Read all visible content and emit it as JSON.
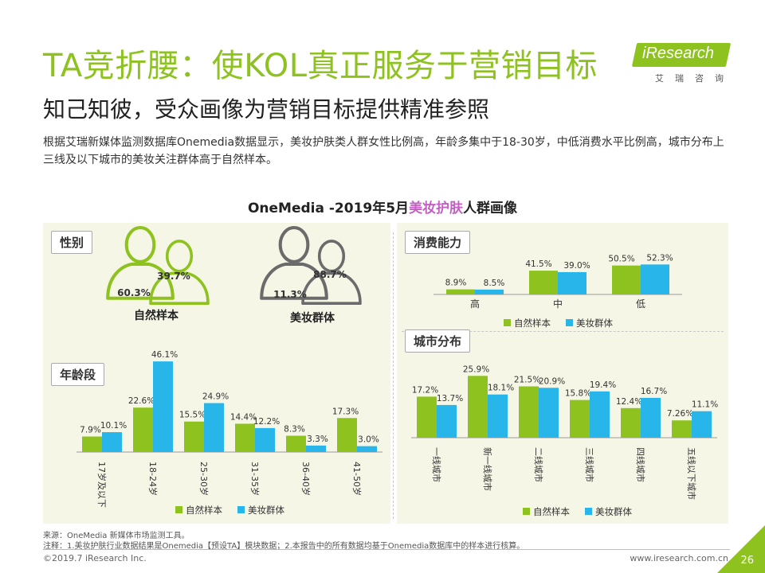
{
  "header": {
    "title": "TA竞折腰：使KOL真正服务于营销目标",
    "subtitle": "知己知彼，受众画像为营销目标提供精准参照",
    "description": "根据艾瑞新媒体监测数据库Onemedia数据显示，美妆护肤类人群女性比例高，年龄多集中于18-30岁，中低消费水平比例高，城市分布上三线及以下城市的美妆关注群体高于自然样本。"
  },
  "logo": {
    "text": "iResearch",
    "sub": "艾瑞咨询"
  },
  "colors": {
    "green": "#8dc21f",
    "blue": "#27b5ea",
    "highlight": "#c45fc4",
    "grayIcon": "#6b6b6b"
  },
  "chart_title": {
    "prefix": "OneMedia -2019年5月",
    "highlight": "美妆护肤",
    "suffix": "人群画像"
  },
  "sections": {
    "gender": "性别",
    "age": "年龄段",
    "spending": "消费能力",
    "city": "城市分布"
  },
  "chart_data": [
    {
      "type": "pictogram",
      "title": "性别",
      "groups": [
        {
          "name": "自然样本",
          "male": "60.3%",
          "female": "39.7%",
          "color": "green"
        },
        {
          "name": "美妆群体",
          "male": "11.3%",
          "female": "88.7%",
          "color": "gray"
        }
      ]
    },
    {
      "type": "bar",
      "title": "年龄段",
      "categories": [
        "17岁及以下",
        "18-24岁",
        "25-30岁",
        "31-35岁",
        "36-40岁",
        "41-50岁"
      ],
      "series": [
        {
          "name": "自然样本",
          "values": [
            7.9,
            22.6,
            15.5,
            14.4,
            8.3,
            17.3
          ],
          "labels": [
            "7.9%",
            "22.6%",
            "15.5%",
            "14.4%",
            "8.3%",
            "17.3%"
          ]
        },
        {
          "name": "美妆群体",
          "values": [
            10.1,
            46.1,
            24.9,
            12.2,
            3.3,
            3.0
          ],
          "labels": [
            "10.1%",
            "46.1%",
            "24.9%",
            "12.2%",
            "3.3%",
            "3.0%"
          ]
        }
      ]
    },
    {
      "type": "bar",
      "title": "消费能力",
      "categories": [
        "高",
        "中",
        "低"
      ],
      "series": [
        {
          "name": "自然样本",
          "values": [
            8.9,
            41.5,
            50.5
          ],
          "labels": [
            "8.9%",
            "41.5%",
            "50.5%"
          ]
        },
        {
          "name": "美妆群体",
          "values": [
            8.5,
            39.0,
            52.3
          ],
          "labels": [
            "8.5%",
            "39.0%",
            "52.3%"
          ]
        }
      ]
    },
    {
      "type": "bar",
      "title": "城市分布",
      "categories": [
        "一线城市",
        "新一线城市",
        "二线城市",
        "三线城市",
        "四线城市",
        "五线以下城市"
      ],
      "series": [
        {
          "name": "自然样本",
          "values": [
            17.2,
            25.9,
            21.5,
            15.8,
            12.4,
            7.26
          ],
          "labels": [
            "17.2%",
            "25.9%",
            "21.5%",
            "15.8%",
            "12.4%",
            "7.26%"
          ]
        },
        {
          "name": "美妆群体",
          "values": [
            13.7,
            18.1,
            20.9,
            19.4,
            16.7,
            11.1
          ],
          "labels": [
            "13.7%",
            "18.1%",
            "20.9%",
            "19.4%",
            "16.7%",
            "11.1%"
          ]
        }
      ]
    }
  ],
  "legend": {
    "natural": "自然样本",
    "beauty": "美妆群体"
  },
  "footer": {
    "source": "来源：OneMedia 新媒体市场监测工具。",
    "note": "注释：1.美妆护肤行业数据结果是Onemedia【预设TA】模块数据；2.本报告中的所有数据均基于Onemedia数据库中的样本进行核算。",
    "copyright": "©2019.7 iResearch Inc.",
    "site": "www.iresearch.com.cn",
    "page": "26"
  }
}
